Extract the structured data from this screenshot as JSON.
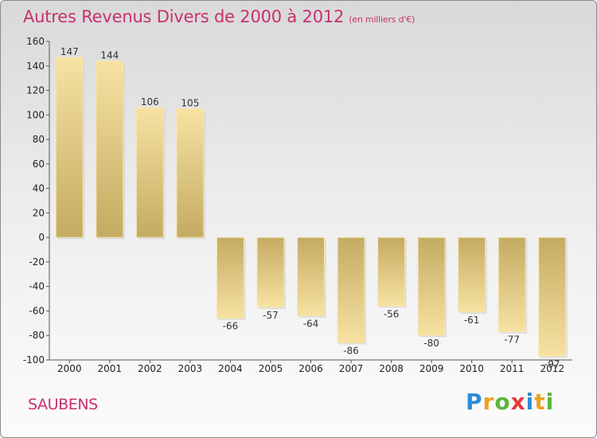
{
  "chart_data": {
    "type": "bar",
    "title": "Autres Revenus Divers de 2000 à 2012",
    "unit": "(en milliers d'€)",
    "categories": [
      "2000",
      "2001",
      "2002",
      "2003",
      "2004",
      "2005",
      "2006",
      "2007",
      "2008",
      "2009",
      "2010",
      "2011",
      "2012"
    ],
    "values": [
      147,
      144,
      106,
      105,
      -66,
      -57,
      -64,
      -86,
      -56,
      -80,
      -61,
      -77,
      -97
    ],
    "value_labels": [
      "147",
      "144",
      "106",
      "105",
      "-66",
      "-57",
      "-64",
      "-86",
      "-56",
      "-80",
      "-61",
      "-77",
      "-97"
    ],
    "ylim": [
      -100,
      160
    ],
    "yticks": [
      -100,
      -80,
      -60,
      -40,
      -20,
      0,
      20,
      40,
      60,
      80,
      100,
      120,
      140,
      160
    ],
    "grid": false,
    "legend": "none",
    "colors": {
      "bar_dark": "#c4ab62",
      "bar_light": "#f7e2a2",
      "title": "#c8306e"
    }
  },
  "location": "SAUBENS",
  "logo": {
    "text": "Proxiti",
    "letters": [
      {
        "ch": "P",
        "color": "#2e8bd6"
      },
      {
        "ch": "r",
        "color": "#f0a020"
      },
      {
        "ch": "o",
        "color": "#5cb53a"
      },
      {
        "ch": "x",
        "color": "#e23a3a"
      },
      {
        "ch": "i",
        "color": "#2e8bd6"
      },
      {
        "ch": "t",
        "color": "#f0a020"
      },
      {
        "ch": "i",
        "color": "#5cb53a"
      }
    ]
  }
}
